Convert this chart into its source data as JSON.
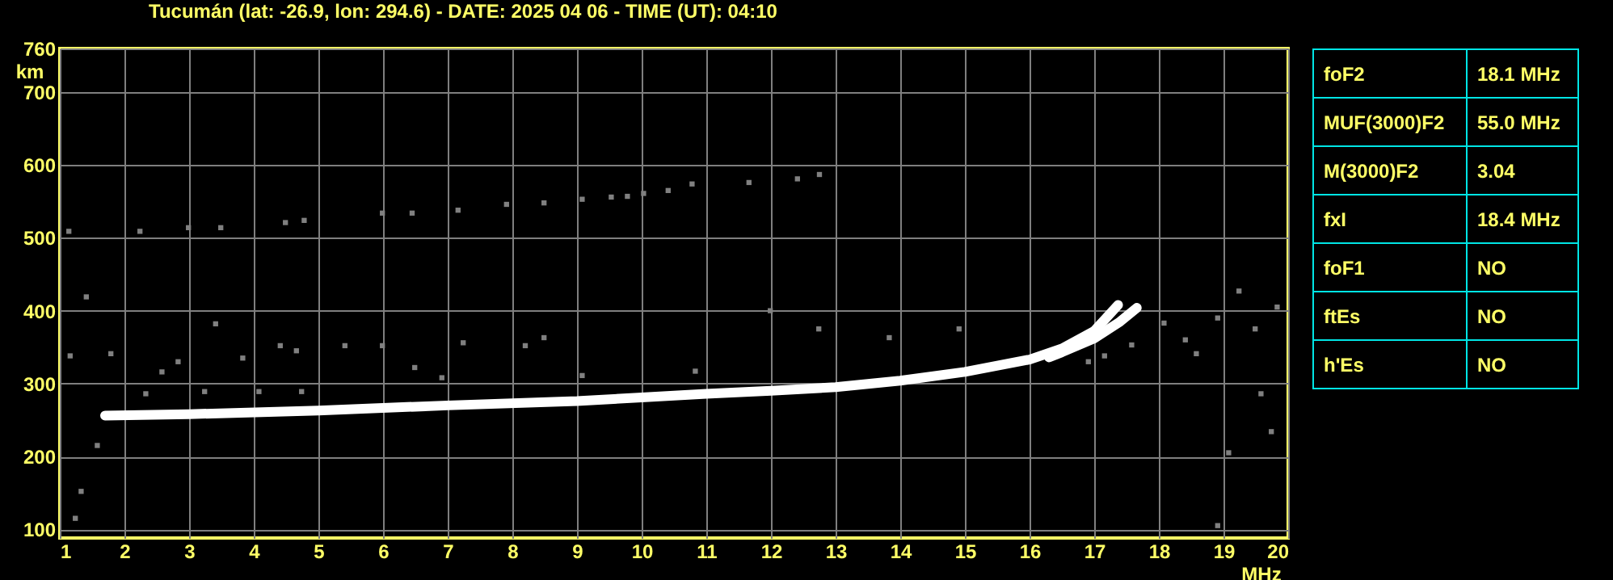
{
  "chart_data": {
    "type": "scatter",
    "title": "Tucumán (lat: -26.9, lon: 294.6) - DATE: 2025 04 06 - TIME (UT): 04:10",
    "xlabel": "MHz",
    "ylabel": "km",
    "xlim": [
      1,
      20
    ],
    "ylim": [
      88,
      760
    ],
    "xticks": [
      1,
      2,
      3,
      4,
      5,
      6,
      7,
      8,
      9,
      10,
      11,
      12,
      13,
      14,
      15,
      16,
      17,
      18,
      19,
      20
    ],
    "yticks": [
      100,
      200,
      300,
      400,
      500,
      600,
      700,
      760
    ],
    "grid": true,
    "series": [
      {
        "type": "line",
        "color": "#ffffff",
        "x": [
          1.7,
          3,
          5,
          7,
          9,
          10,
          11,
          12,
          13,
          14,
          15,
          16,
          16.5,
          17,
          17.37
        ],
        "values": [
          256,
          258,
          263,
          270,
          276,
          281,
          286,
          290,
          295,
          304,
          316,
          333,
          348,
          372,
          408
        ]
      },
      {
        "type": "line",
        "color": "#ffffff",
        "x": [
          16.3,
          16.5,
          17,
          17.4,
          17.66
        ],
        "values": [
          336,
          343,
          362,
          385,
          404
        ]
      },
      {
        "marker": "square",
        "color": "#808080",
        "x": [
          1.14,
          2.24,
          2.99,
          3.49,
          4.49,
          4.78,
          5.99,
          6.45,
          7.16,
          7.91,
          8.49,
          9.08,
          9.53,
          9.78,
          10.03,
          10.41,
          10.78,
          11.66,
          12.41,
          12.75
        ],
        "values": [
          509,
          509,
          514,
          514,
          521,
          524,
          534,
          534,
          538,
          546,
          548,
          553,
          556,
          557,
          561,
          565,
          574,
          576,
          581,
          587
        ]
      },
      {
        "marker": "square",
        "color": "#808080",
        "x": [
          2.58,
          2.33,
          2.83,
          3.41,
          3.83,
          4.41,
          4.66,
          5.41,
          5.99,
          6.49,
          7.24,
          8.2,
          8.49,
          3.24,
          4.08,
          4.74,
          1.79,
          1.41,
          1.16,
          1.33,
          1.24,
          1.58,
          6.91,
          9.08,
          10.83,
          11.99,
          12.74,
          13.83,
          14.91,
          17.16,
          18.08,
          18.41,
          18.58,
          19.24,
          19.49,
          19.83,
          18.91,
          19.58,
          19.74,
          19.08,
          18.91,
          17.58,
          16.91
        ],
        "values": [
          316,
          286,
          330,
          382,
          335,
          352,
          345,
          352,
          352,
          322,
          356,
          352,
          363,
          289,
          289,
          289,
          341,
          419,
          338,
          152,
          115,
          215,
          308,
          311,
          317,
          400,
          375,
          363,
          375,
          338,
          383,
          360,
          341,
          427,
          375,
          405,
          390,
          286,
          234,
          205,
          105,
          353,
          330
        ]
      }
    ],
    "annotations": [
      "foF2",
      "18.1 MHz",
      "MUF(3000)F2",
      "55.0 MHz",
      "M(3000)F2",
      "3.04",
      "fxI",
      "18.4 MHz",
      "foF1",
      "NO",
      "ftEs",
      "NO",
      "h'Es",
      "NO"
    ]
  }
}
